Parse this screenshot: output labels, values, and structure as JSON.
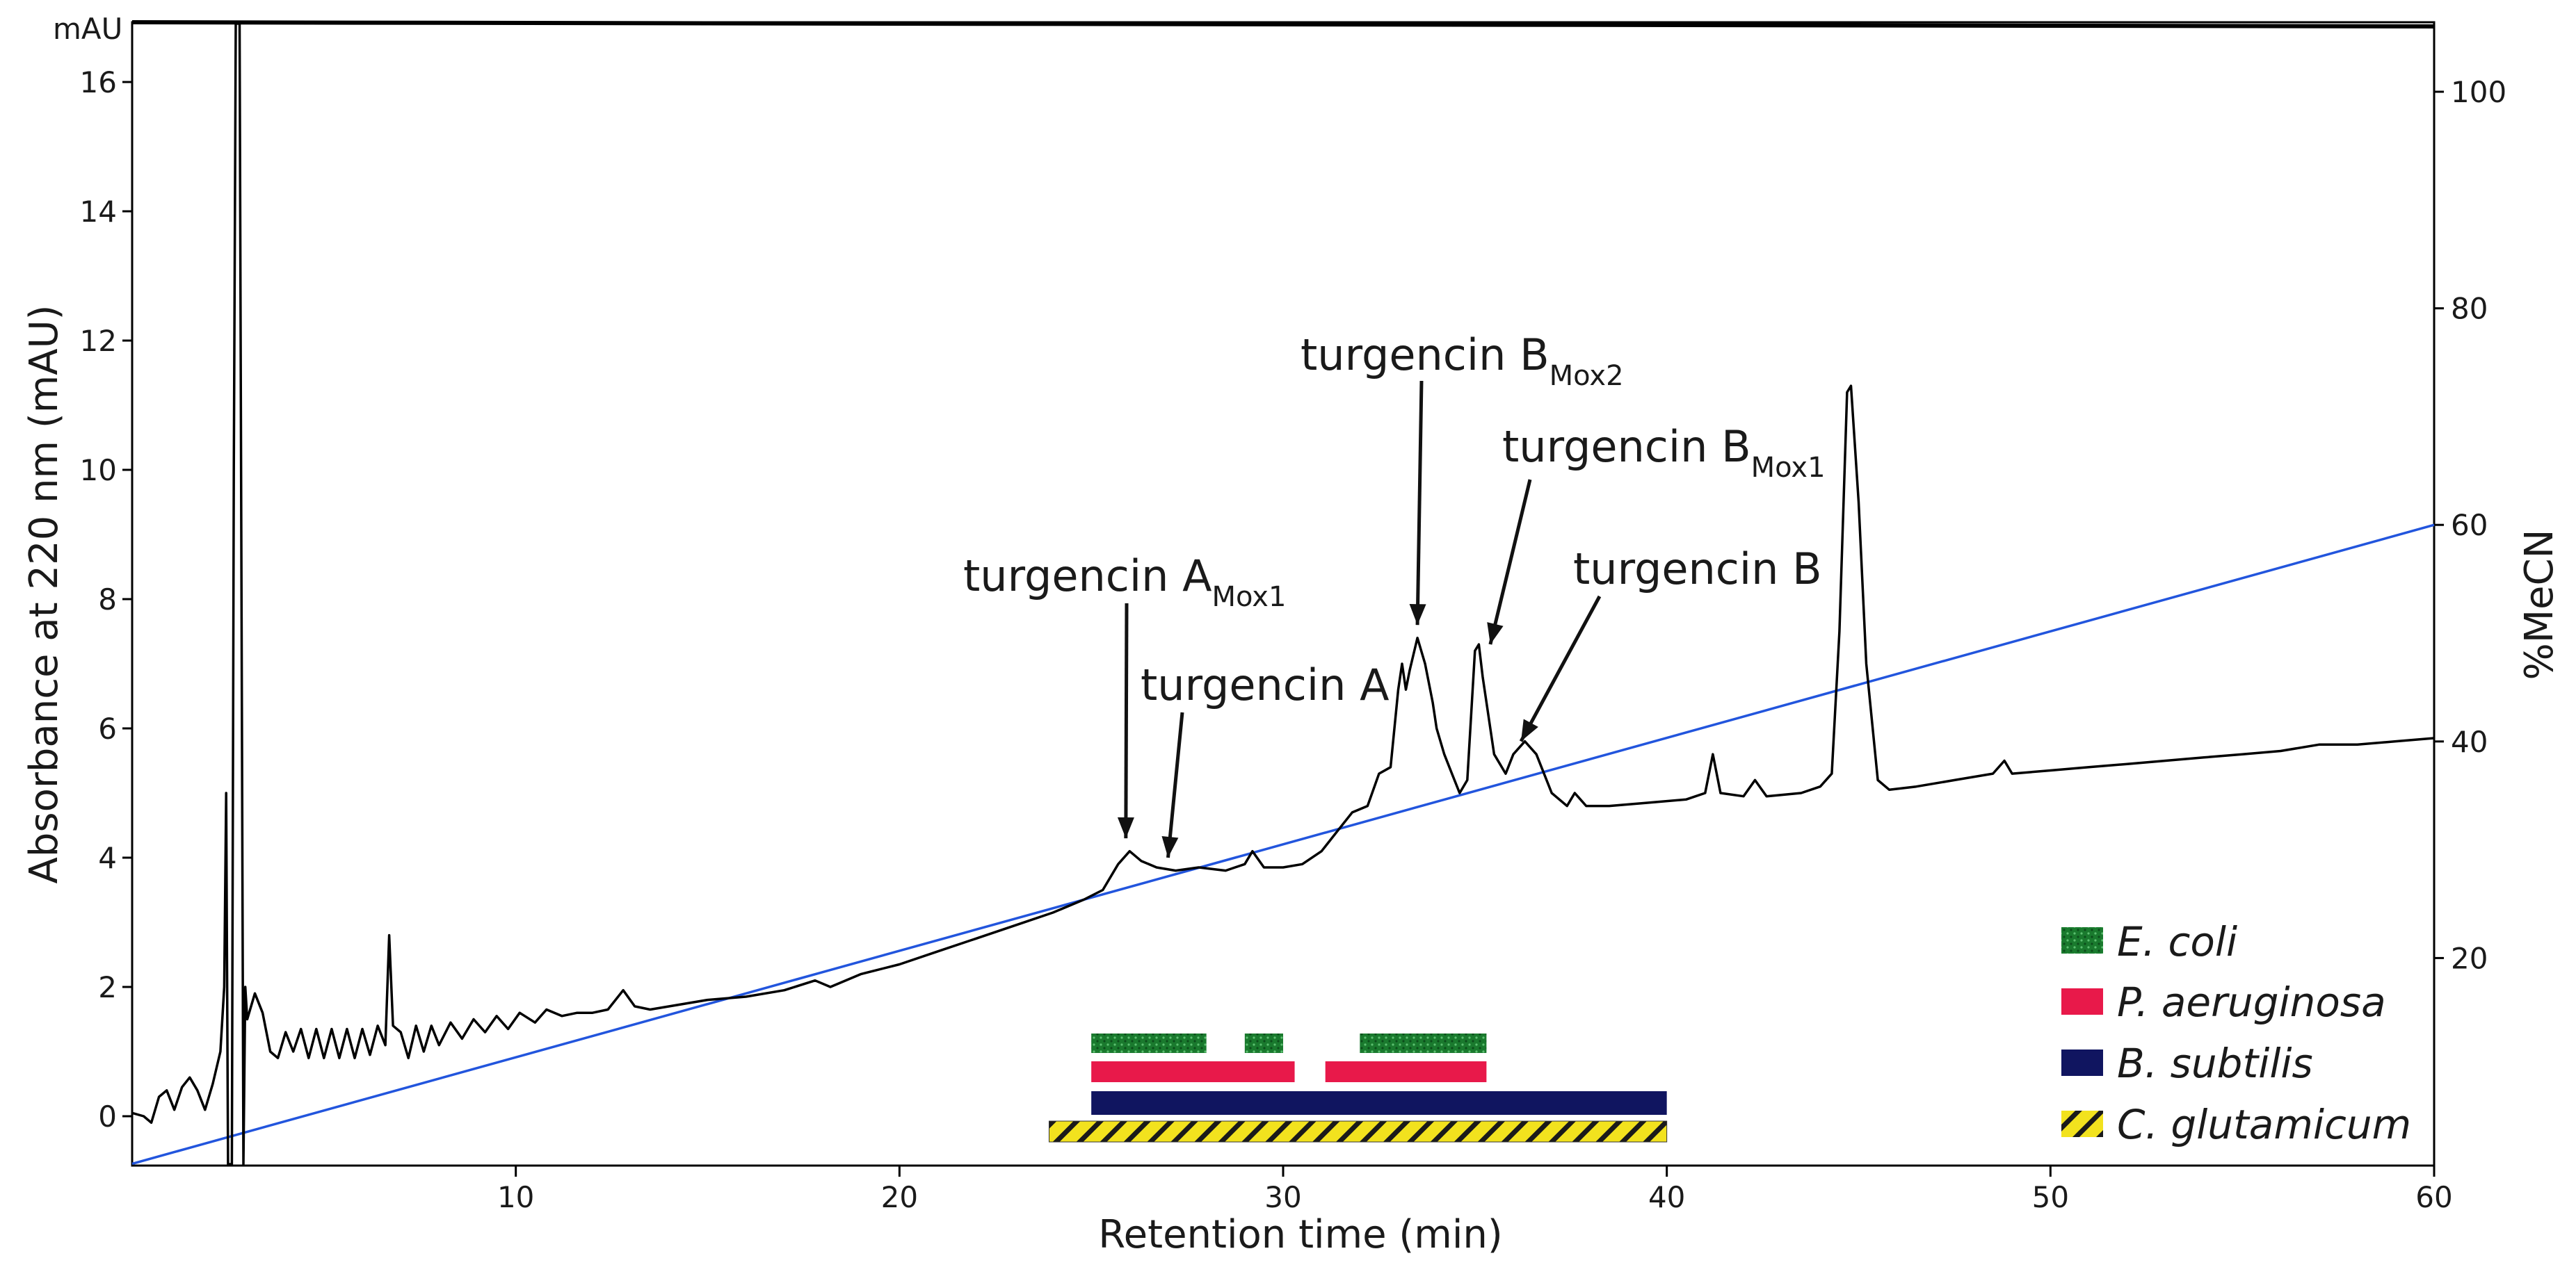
{
  "chart_data": {
    "type": "line",
    "xlabel": "Retention time (min)",
    "ylabel": "Absorbance at 220 nm (mAU)",
    "y_unit_label": "mAU",
    "y2label": "%MeCN",
    "xlim": [
      0,
      60
    ],
    "ylim": [
      -0.8,
      17
    ],
    "y2lim": [
      0,
      105
    ],
    "x_ticks": [
      10,
      20,
      30,
      40,
      50,
      60
    ],
    "y_ticks": [
      0,
      2,
      4,
      6,
      8,
      10,
      12,
      14,
      16
    ],
    "y2_ticks": [
      20,
      40,
      60,
      80,
      100
    ],
    "series": [
      {
        "name": "Absorbance at 220 nm",
        "color": "#000000",
        "axis": "left",
        "points": [
          [
            0,
            0.05
          ],
          [
            0.3,
            0.0
          ],
          [
            0.5,
            -0.1
          ],
          [
            0.7,
            0.3
          ],
          [
            0.9,
            0.4
          ],
          [
            1.1,
            0.1
          ],
          [
            1.3,
            0.45
          ],
          [
            1.5,
            0.6
          ],
          [
            1.7,
            0.4
          ],
          [
            1.9,
            0.1
          ],
          [
            2.1,
            0.5
          ],
          [
            2.3,
            1.0
          ],
          [
            2.4,
            2.0
          ],
          [
            2.45,
            5.0
          ],
          [
            2.5,
            -0.8
          ],
          [
            2.6,
            -0.8
          ],
          [
            2.65,
            10.0
          ],
          [
            2.7,
            17.0
          ],
          [
            2.8,
            17.0
          ],
          [
            2.9,
            -0.8
          ],
          [
            2.95,
            2.0
          ],
          [
            3.0,
            1.5
          ],
          [
            3.2,
            1.9
          ],
          [
            3.4,
            1.6
          ],
          [
            3.6,
            1.0
          ],
          [
            3.8,
            0.9
          ],
          [
            4.0,
            1.3
          ],
          [
            4.2,
            1.0
          ],
          [
            4.4,
            1.35
          ],
          [
            4.6,
            0.9
          ],
          [
            4.8,
            1.35
          ],
          [
            5.0,
            0.9
          ],
          [
            5.2,
            1.35
          ],
          [
            5.4,
            0.9
          ],
          [
            5.6,
            1.35
          ],
          [
            5.8,
            0.9
          ],
          [
            6.0,
            1.35
          ],
          [
            6.2,
            0.95
          ],
          [
            6.4,
            1.4
          ],
          [
            6.6,
            1.1
          ],
          [
            6.7,
            2.8
          ],
          [
            6.8,
            1.4
          ],
          [
            7.0,
            1.3
          ],
          [
            7.2,
            0.9
          ],
          [
            7.4,
            1.4
          ],
          [
            7.6,
            1.0
          ],
          [
            7.8,
            1.4
          ],
          [
            8.0,
            1.1
          ],
          [
            8.3,
            1.45
          ],
          [
            8.6,
            1.2
          ],
          [
            8.9,
            1.5
          ],
          [
            9.2,
            1.3
          ],
          [
            9.5,
            1.55
          ],
          [
            9.8,
            1.35
          ],
          [
            10.1,
            1.6
          ],
          [
            10.5,
            1.45
          ],
          [
            10.8,
            1.65
          ],
          [
            11.2,
            1.55
          ],
          [
            11.6,
            1.6
          ],
          [
            12.0,
            1.6
          ],
          [
            12.4,
            1.65
          ],
          [
            12.8,
            1.95
          ],
          [
            13.1,
            1.7
          ],
          [
            13.5,
            1.65
          ],
          [
            14.0,
            1.7
          ],
          [
            15.0,
            1.8
          ],
          [
            16.0,
            1.85
          ],
          [
            17.0,
            1.95
          ],
          [
            17.8,
            2.1
          ],
          [
            18.2,
            2.0
          ],
          [
            19.0,
            2.2
          ],
          [
            20.0,
            2.35
          ],
          [
            21.0,
            2.55
          ],
          [
            22.0,
            2.75
          ],
          [
            23.0,
            2.95
          ],
          [
            24.0,
            3.15
          ],
          [
            24.8,
            3.35
          ],
          [
            25.3,
            3.5
          ],
          [
            25.7,
            3.9
          ],
          [
            26.0,
            4.1
          ],
          [
            26.3,
            3.95
          ],
          [
            26.7,
            3.85
          ],
          [
            27.2,
            3.8
          ],
          [
            27.8,
            3.85
          ],
          [
            28.5,
            3.8
          ],
          [
            29.0,
            3.9
          ],
          [
            29.2,
            4.1
          ],
          [
            29.5,
            3.85
          ],
          [
            30.0,
            3.85
          ],
          [
            30.5,
            3.9
          ],
          [
            31.0,
            4.1
          ],
          [
            31.4,
            4.4
          ],
          [
            31.8,
            4.7
          ],
          [
            32.2,
            4.8
          ],
          [
            32.5,
            5.3
          ],
          [
            32.8,
            5.4
          ],
          [
            33.0,
            6.6
          ],
          [
            33.1,
            7.0
          ],
          [
            33.2,
            6.6
          ],
          [
            33.3,
            6.9
          ],
          [
            33.5,
            7.4
          ],
          [
            33.7,
            7.0
          ],
          [
            33.9,
            6.4
          ],
          [
            34.0,
            6.0
          ],
          [
            34.2,
            5.6
          ],
          [
            34.4,
            5.3
          ],
          [
            34.6,
            5.0
          ],
          [
            34.8,
            5.2
          ],
          [
            35.0,
            7.2
          ],
          [
            35.1,
            7.3
          ],
          [
            35.2,
            6.8
          ],
          [
            35.5,
            5.6
          ],
          [
            35.8,
            5.3
          ],
          [
            36.0,
            5.6
          ],
          [
            36.3,
            5.8
          ],
          [
            36.6,
            5.6
          ],
          [
            37.0,
            5.0
          ],
          [
            37.4,
            4.8
          ],
          [
            37.6,
            5.0
          ],
          [
            37.9,
            4.8
          ],
          [
            38.5,
            4.8
          ],
          [
            39.5,
            4.85
          ],
          [
            40.5,
            4.9
          ],
          [
            41.0,
            5.0
          ],
          [
            41.2,
            5.6
          ],
          [
            41.4,
            5.0
          ],
          [
            42.0,
            4.95
          ],
          [
            42.3,
            5.2
          ],
          [
            42.6,
            4.95
          ],
          [
            43.5,
            5.0
          ],
          [
            44.0,
            5.1
          ],
          [
            44.3,
            5.3
          ],
          [
            44.5,
            7.5
          ],
          [
            44.7,
            11.2
          ],
          [
            44.8,
            11.3
          ],
          [
            45.0,
            9.5
          ],
          [
            45.2,
            7.0
          ],
          [
            45.5,
            5.2
          ],
          [
            45.8,
            5.05
          ],
          [
            46.5,
            5.1
          ],
          [
            47.5,
            5.2
          ],
          [
            48.5,
            5.3
          ],
          [
            48.8,
            5.5
          ],
          [
            49.0,
            5.3
          ],
          [
            50.0,
            5.35
          ],
          [
            51.0,
            5.4
          ],
          [
            52.0,
            5.45
          ],
          [
            53.0,
            5.5
          ],
          [
            54.0,
            5.55
          ],
          [
            55.0,
            5.6
          ],
          [
            56.0,
            5.65
          ],
          [
            57.0,
            5.75
          ],
          [
            58.0,
            5.75
          ],
          [
            59.0,
            5.8
          ],
          [
            60.0,
            5.85
          ]
        ]
      },
      {
        "name": "%MeCN gradient",
        "color": "#2255dd",
        "axis": "right",
        "points": [
          [
            0,
            1.0
          ],
          [
            60,
            60.0
          ]
        ]
      }
    ],
    "annotations": [
      {
        "text": "turgencin A",
        "sub": "Mox1",
        "target_x": 25.9,
        "target_y": 4.3
      },
      {
        "text": "turgencin A",
        "sub": "",
        "target_x": 27.0,
        "target_y": 4.0
      },
      {
        "text": "turgencin B",
        "sub": "Mox2",
        "target_x": 33.5,
        "target_y": 7.6
      },
      {
        "text": "turgencin B",
        "sub": "Mox1",
        "target_x": 35.4,
        "target_y": 7.3
      },
      {
        "text": "turgencin B",
        "sub": "",
        "target_x": 36.2,
        "target_y": 5.8
      }
    ],
    "activity_bars": [
      {
        "organism": "E. coli",
        "color": "#1a7a2e",
        "pattern": "dots",
        "ranges": [
          [
            25.0,
            28.0
          ],
          [
            29.0,
            30.0
          ],
          [
            32.0,
            35.3
          ]
        ]
      },
      {
        "organism": "P. aeruginosa",
        "color": "#e8194a",
        "pattern": "solid",
        "ranges": [
          [
            25.0,
            30.3
          ],
          [
            31.1,
            35.3
          ]
        ]
      },
      {
        "organism": "B. subtilis",
        "color": "#101560",
        "pattern": "solid",
        "ranges": [
          [
            25.0,
            40.0
          ]
        ]
      },
      {
        "organism": "C. glutamicum",
        "color": "#f2e21e",
        "pattern": "hatch",
        "ranges": [
          [
            23.9,
            40.0
          ]
        ]
      }
    ],
    "legend": {
      "placement": "bottom-right",
      "entries": [
        "E. coli",
        "P. aeruginosa",
        "B. subtilis",
        "C. glutamicum"
      ]
    }
  }
}
